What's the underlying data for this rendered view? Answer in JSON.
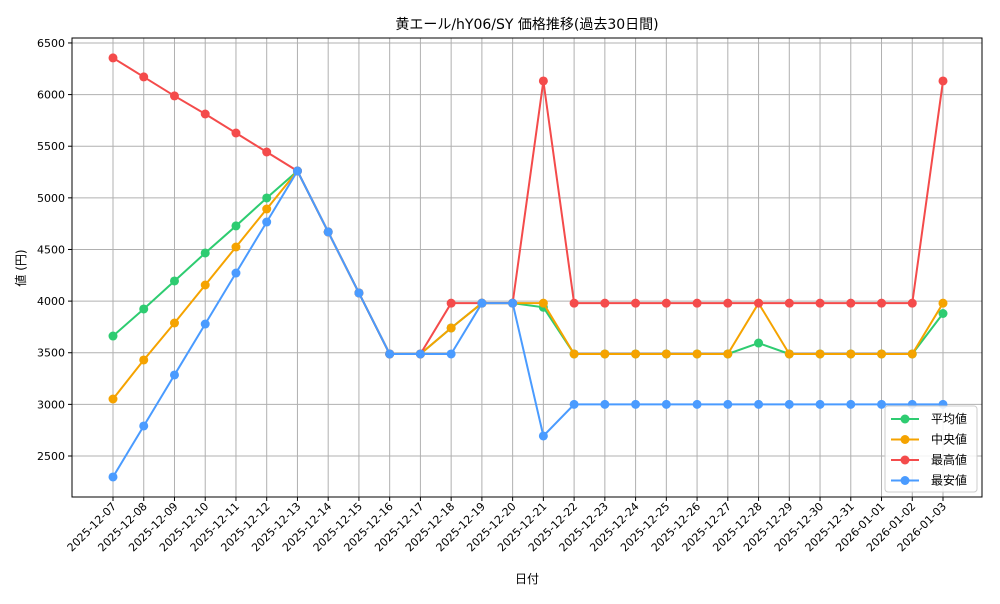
{
  "chart_data": {
    "type": "line",
    "title": "黄エール/hY06/SY 価格推移(過去30日間)",
    "xlabel": "日付",
    "ylabel": "値 (円)",
    "ylim": [
      2103,
      6548
    ],
    "yticks": [
      2500,
      3000,
      3500,
      4000,
      4500,
      5000,
      5500,
      6000,
      6500
    ],
    "grid": true,
    "legend_position": "lower-right",
    "categories": [
      "2025-12-07",
      "2025-12-08",
      "2025-12-09",
      "2025-12-10",
      "2025-12-11",
      "2025-12-12",
      "2025-12-13",
      "2025-12-14",
      "2025-12-15",
      "2025-12-16",
      "2025-12-17",
      "2025-12-18",
      "2025-12-19",
      "2025-12-20",
      "2025-12-21",
      "2025-12-22",
      "2025-12-23",
      "2025-12-24",
      "2025-12-25",
      "2025-12-26",
      "2025-12-27",
      "2025-12-28",
      "2025-12-29",
      "2025-12-30",
      "2025-12-31",
      "2026-01-01",
      "2026-01-02",
      "2026-01-03"
    ],
    "series": [
      {
        "name": "平均値",
        "color": "#2ecc71",
        "values": [
          3662,
          3924,
          4195,
          4466,
          4728,
          4999,
          5260,
          4670,
          4079,
          3488,
          3488,
          3740,
          3980,
          3980,
          3940,
          3488,
          3488,
          3488,
          3488,
          3488,
          3488,
          3594,
          3488,
          3488,
          3488,
          3488,
          3488,
          3880
        ]
      },
      {
        "name": "中央値",
        "color": "#f5a300",
        "values": [
          3052,
          3430,
          3788,
          4156,
          4524,
          4892,
          5260,
          4670,
          4079,
          3488,
          3488,
          3740,
          3980,
          3980,
          3980,
          3488,
          3488,
          3488,
          3488,
          3488,
          3488,
          3980,
          3488,
          3488,
          3488,
          3488,
          3488,
          3980
        ]
      },
      {
        "name": "最高値",
        "color": "#f44b4b",
        "values": [
          6355,
          6171,
          5987,
          5812,
          5628,
          5444,
          5260,
          4670,
          4079,
          3488,
          3488,
          3980,
          3980,
          3980,
          6132,
          3980,
          3980,
          3980,
          3980,
          3980,
          3980,
          3980,
          3980,
          3980,
          3980,
          3980,
          3980,
          6132
        ]
      },
      {
        "name": "最安値",
        "color": "#4a9bff",
        "values": [
          2297,
          2791,
          3285,
          3778,
          4272,
          4766,
          5260,
          4670,
          4079,
          3488,
          3488,
          3488,
          3980,
          3980,
          2694,
          3000,
          3000,
          3000,
          3000,
          3000,
          3000,
          3000,
          3000,
          3000,
          3000,
          3000,
          3000,
          3000
        ]
      }
    ]
  }
}
